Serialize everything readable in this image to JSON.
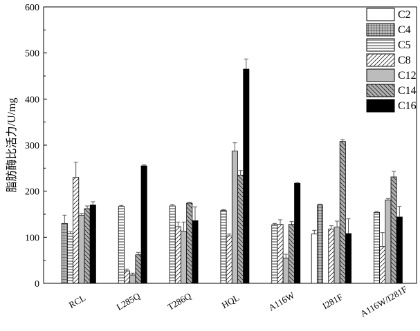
{
  "chart_data": {
    "type": "bar",
    "ylabel": "脂肪酶比活力/U/mg",
    "xlabel": "",
    "ylim": [
      0,
      600
    ],
    "yticks": [
      0,
      100,
      200,
      300,
      400,
      500,
      600
    ],
    "grid": false,
    "legend_position": "top-right",
    "categories": [
      "RCL",
      "L285Q",
      "T286Q",
      "HQL",
      "A116W",
      "I281F",
      "A116W/I281F"
    ],
    "series": [
      {
        "name": "C2",
        "pattern": "white",
        "values": [
          0,
          0,
          0,
          0,
          0,
          107,
          0
        ],
        "errors": [
          0,
          0,
          0,
          0,
          0,
          8,
          0
        ]
      },
      {
        "name": "C4",
        "pattern": "grid",
        "values": [
          130,
          0,
          0,
          0,
          0,
          170,
          0
        ],
        "errors": [
          18,
          0,
          0,
          0,
          0,
          2,
          0
        ]
      },
      {
        "name": "C5",
        "pattern": "hlines",
        "values": [
          108,
          167,
          168,
          158,
          127,
          0,
          154
        ],
        "errors": [
          4,
          2,
          3,
          2,
          3,
          0,
          2
        ]
      },
      {
        "name": "C8",
        "pattern": "diag",
        "values": [
          230,
          27,
          123,
          103,
          128,
          118,
          80
        ],
        "errors": [
          33,
          4,
          10,
          4,
          10,
          7,
          30
        ]
      },
      {
        "name": "C12",
        "pattern": "gray",
        "values": [
          148,
          18,
          113,
          287,
          55,
          122,
          181
        ],
        "errors": [
          4,
          4,
          20,
          18,
          8,
          13,
          3
        ]
      },
      {
        "name": "C14",
        "pattern": "backdiag",
        "values": [
          162,
          62,
          174,
          235,
          128,
          308,
          231
        ],
        "errors": [
          6,
          5,
          2,
          10,
          6,
          4,
          12
        ]
      },
      {
        "name": "C16",
        "pattern": "black",
        "values": [
          170,
          255,
          136,
          465,
          217,
          108,
          144
        ],
        "errors": [
          7,
          2,
          30,
          22,
          2,
          32,
          23
        ]
      }
    ]
  }
}
